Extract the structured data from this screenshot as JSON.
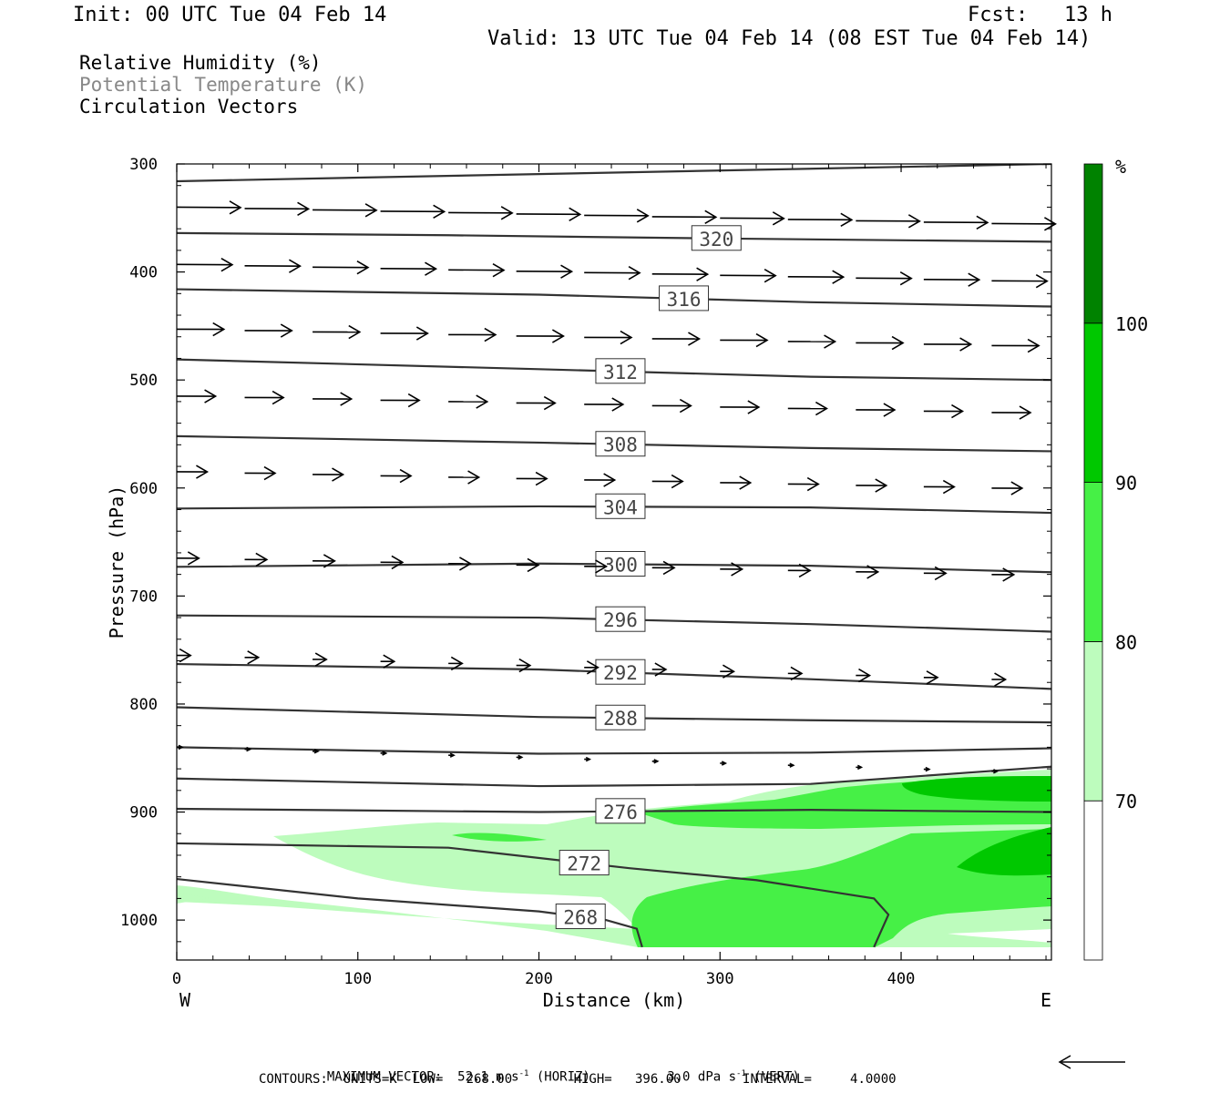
{
  "header": {
    "init": "Init: 00 UTC Tue 04 Feb 14",
    "fcst": "Fcst:   13 h",
    "valid": "Valid: 13 UTC Tue 04 Feb 14 (08 EST Tue 04 Feb 14)"
  },
  "legend": {
    "rh": "Relative Humidity (%)",
    "theta": "Potential Temperature (K)",
    "vectors": "Circulation Vectors"
  },
  "chart_data": {
    "type": "cross-section",
    "xlabel": "Distance (km)",
    "ylabel": "Pressure (hPa)",
    "xlim": [
      0,
      483
    ],
    "ylim": [
      1037,
      300
    ],
    "y_scale": "linear, inverted (pressure decreasing upward)",
    "xticks": [
      0,
      100,
      200,
      300,
      400
    ],
    "yticks": [
      300,
      400,
      500,
      600,
      700,
      800,
      900,
      1000
    ],
    "west_label": "W",
    "east_label": "E",
    "colorbar": {
      "unit": "%",
      "levels": [
        70,
        80,
        90,
        100
      ],
      "colors": [
        "#ffffff",
        "#bdfcbd",
        "#46f046",
        "#00c800",
        "#008200"
      ]
    },
    "theta_contours": [
      {
        "label": "",
        "x": [
          0,
          483
        ],
        "p": [
          316,
          300
        ]
      },
      {
        "label": "320",
        "x": [
          0,
          150,
          300,
          483
        ],
        "p": [
          364,
          366,
          369,
          372
        ]
      },
      {
        "label": "316",
        "x": [
          0,
          200,
          350,
          483
        ],
        "p": [
          416,
          421,
          428,
          432
        ]
      },
      {
        "label": "312",
        "x": [
          0,
          200,
          350,
          483
        ],
        "p": [
          481,
          490,
          497,
          500
        ]
      },
      {
        "label": "308",
        "x": [
          0,
          200,
          350,
          483
        ],
        "p": [
          552,
          558,
          563,
          566
        ]
      },
      {
        "label": "304",
        "x": [
          0,
          200,
          350,
          483
        ],
        "p": [
          619,
          617,
          618,
          623
        ]
      },
      {
        "label": "300",
        "x": [
          0,
          200,
          350,
          483
        ],
        "p": [
          673,
          670,
          672,
          678
        ]
      },
      {
        "label": "296",
        "x": [
          0,
          200,
          350,
          483
        ],
        "p": [
          718,
          720,
          726,
          733
        ]
      },
      {
        "label": "292",
        "x": [
          0,
          200,
          350,
          483
        ],
        "p": [
          763,
          768,
          777,
          786
        ]
      },
      {
        "label": "288",
        "x": [
          0,
          200,
          350,
          483
        ],
        "p": [
          803,
          812,
          815,
          817
        ]
      },
      {
        "label": "",
        "x": [
          0,
          200,
          350,
          483
        ],
        "p": [
          840,
          846,
          845,
          841
        ]
      },
      {
        "label": "",
        "x": [
          0,
          200,
          350,
          483
        ],
        "p": [
          869,
          876,
          874,
          858
        ]
      },
      {
        "label": "276",
        "x": [
          0,
          200,
          350,
          483
        ],
        "p": [
          897,
          900,
          898,
          900
        ]
      },
      {
        "label": "272",
        "x": [
          0,
          150,
          250,
          320,
          385,
          393,
          385
        ],
        "p": [
          929,
          933,
          952,
          963,
          980,
          995,
          1025
        ]
      },
      {
        "label": "268",
        "x": [
          0,
          100,
          200,
          237,
          254,
          257
        ],
        "p": [
          962,
          980,
          992,
          1000,
          1008,
          1025
        ]
      }
    ],
    "vector_rows_p": [
      340,
      393,
      453,
      515,
      585,
      665,
      755,
      840
    ],
    "vector_speed_scale": {
      "top": 1.0,
      "bottom": 0.0
    },
    "footer": {
      "max_vector_label": "MAXIMUM VECTOR:",
      "max_horiz": "52.1 m s",
      "horiz_exp": "-1",
      "horiz_tag": "(HORIZ)",
      "max_vert": "3.0 dPa s",
      "vert_exp": "-1",
      "vert_tag": "(VERT)",
      "contours_line": "CONTOURS:  UNITS=K  LOW=   268.00        HIGH=   396.00        INTERVAL=     4.0000"
    }
  }
}
